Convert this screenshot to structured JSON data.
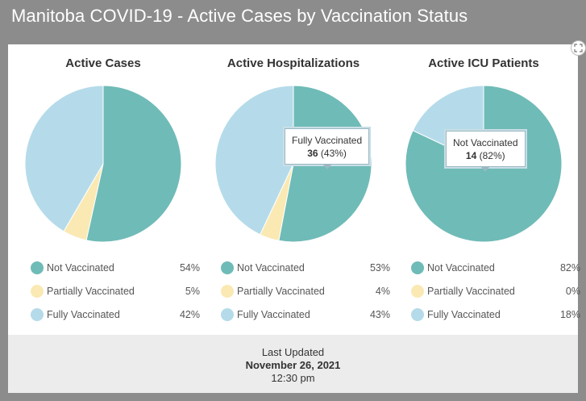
{
  "window": {
    "title": "Manitoba COVID-19 - Active Cases by Vaccination Status"
  },
  "toolbar": {
    "expand_icon": "expand-arrows-icon"
  },
  "colors": {
    "not_vaccinated": "#6fbbb7",
    "partially_vaccinated": "#fae9b3",
    "fully_vaccinated": "#b5dbea"
  },
  "chart_data": [
    {
      "type": "pie",
      "title": "Active Cases",
      "categories": [
        "Not Vaccinated",
        "Partially Vaccinated",
        "Fully Vaccinated"
      ],
      "values": [
        54,
        5,
        42
      ],
      "labels": [
        "54%",
        "5%",
        "42%"
      ]
    },
    {
      "type": "pie",
      "title": "Active Hospitalizations",
      "categories": [
        "Not Vaccinated",
        "Partially Vaccinated",
        "Fully Vaccinated"
      ],
      "values": [
        53,
        4,
        43
      ],
      "labels": [
        "53%",
        "4%",
        "43%"
      ],
      "tooltip": {
        "category": "Fully Vaccinated",
        "count": "36",
        "percent": "(43%)"
      }
    },
    {
      "type": "pie",
      "title": "Active ICU Patients",
      "categories": [
        "Not Vaccinated",
        "Partially Vaccinated",
        "Fully Vaccinated"
      ],
      "values": [
        82,
        0,
        18
      ],
      "labels": [
        "82%",
        "0%",
        "18%"
      ],
      "tooltip": {
        "category": "Not Vaccinated",
        "count": "14",
        "percent": "(82%)"
      }
    }
  ],
  "footer": {
    "label": "Last Updated",
    "date": "November 26, 2021",
    "time": "12:30 pm"
  }
}
